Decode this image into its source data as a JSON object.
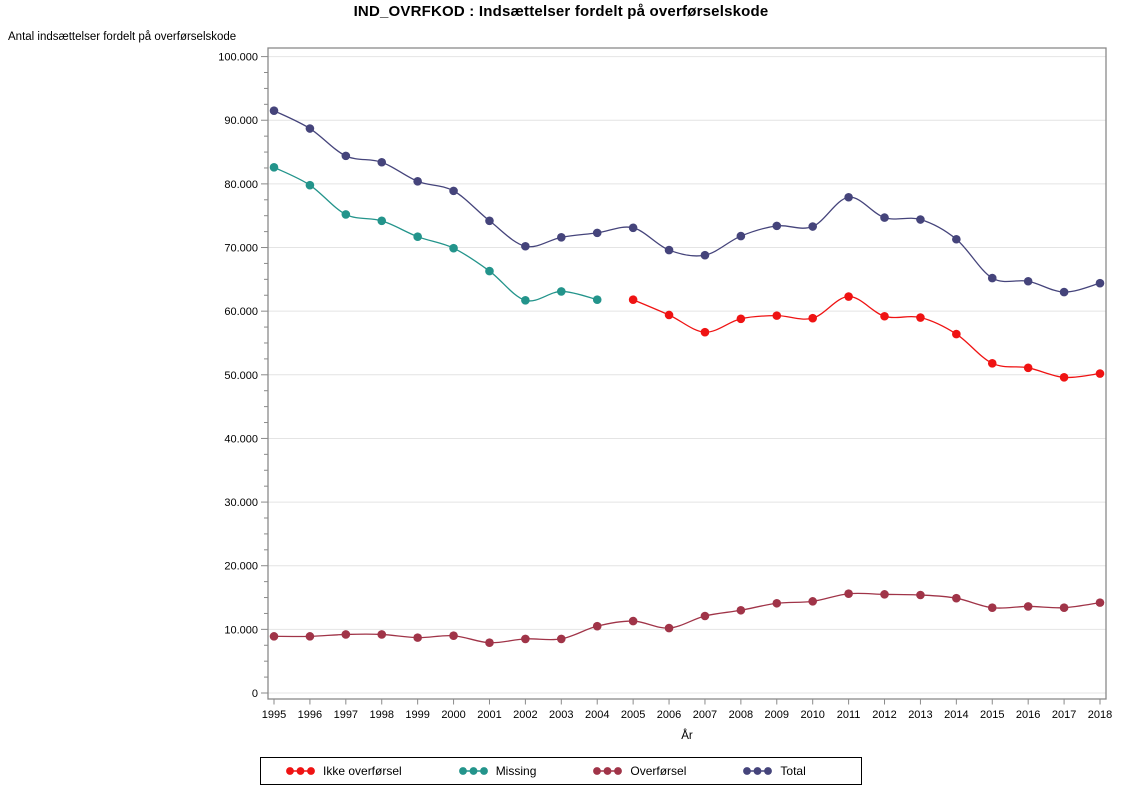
{
  "title": "IND_OVRFKOD : Indsættelser fordelt på overførselskode",
  "y_axis": {
    "label": "Antal indsættelser fordelt på overførselskode",
    "min": 0,
    "max": 100000,
    "major_step": 10000,
    "minor_step": 2500,
    "tick_labels": [
      "0",
      "10.000",
      "20.000",
      "30.000",
      "40.000",
      "50.000",
      "60.000",
      "70.000",
      "80.000",
      "90.000",
      "100.000"
    ]
  },
  "x_axis": {
    "label": "År",
    "ticks": [
      "1995",
      "1996",
      "1997",
      "1998",
      "1999",
      "2000",
      "2001",
      "2002",
      "2003",
      "2004",
      "2005",
      "2006",
      "2007",
      "2008",
      "2009",
      "2010",
      "2011",
      "2012",
      "2013",
      "2014",
      "2015",
      "2016",
      "2017",
      "2018"
    ]
  },
  "chart_data": {
    "type": "line",
    "title": "IND_OVRFKOD : Indsættelser fordelt på overførselskode",
    "xlabel": "År",
    "ylabel": "Antal indsættelser fordelt på overførselskode",
    "x": [
      1995,
      1996,
      1997,
      1998,
      1999,
      2000,
      2001,
      2002,
      2003,
      2004,
      2005,
      2006,
      2007,
      2008,
      2009,
      2010,
      2011,
      2012,
      2013,
      2014,
      2015,
      2016,
      2017,
      2018
    ],
    "ylim": [
      0,
      100000
    ],
    "grid": true,
    "legend_position": "bottom",
    "marker": "filled-circle",
    "series": [
      {
        "name": "Ikke overførsel",
        "color": "#ef1313",
        "values": [
          null,
          null,
          null,
          null,
          null,
          null,
          null,
          null,
          null,
          null,
          61800,
          59400,
          56700,
          58800,
          59300,
          58900,
          62300,
          59200,
          59000,
          56400,
          51800,
          51100,
          49600,
          50200
        ]
      },
      {
        "name": "Missing",
        "color": "#23948b",
        "values": [
          82600,
          79800,
          75200,
          74200,
          71700,
          69900,
          66300,
          61700,
          63100,
          61800,
          null,
          null,
          null,
          null,
          null,
          null,
          null,
          null,
          null,
          null,
          null,
          null,
          null,
          null
        ]
      },
      {
        "name": "Overførsel",
        "color": "#a03448",
        "values": [
          8900,
          8900,
          9200,
          9200,
          8700,
          9000,
          7900,
          8500,
          8500,
          10500,
          11300,
          10200,
          12100,
          13000,
          14100,
          14400,
          15600,
          15500,
          15400,
          14900,
          13400,
          13600,
          13400,
          14200
        ]
      },
      {
        "name": "Total",
        "color": "#45447b",
        "values": [
          91500,
          88700,
          84400,
          83400,
          80400,
          78900,
          74200,
          70200,
          71600,
          72300,
          73100,
          69600,
          68800,
          71800,
          73400,
          73300,
          77900,
          74700,
          74400,
          71300,
          65200,
          64700,
          63000,
          64400
        ]
      }
    ]
  },
  "colors": {
    "gridline": "#e4e4e4",
    "frame": "#8a8a8a",
    "text": "#000000"
  }
}
